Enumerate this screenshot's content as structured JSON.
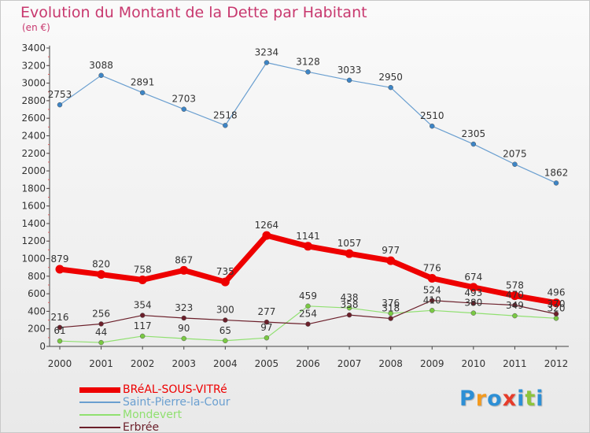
{
  "header": {
    "title": "Evolution du Montant de la Dette par Habitant",
    "unit": "(en €)"
  },
  "logo": {
    "letters": [
      "P",
      "r",
      "o",
      "x",
      "i",
      "t",
      "i"
    ],
    "colors": [
      "#2d8fd5",
      "#f39a1f",
      "#2d8fd5",
      "#e63c2a",
      "#2d8fd5",
      "#8cc43c",
      "#2d8fd5"
    ]
  },
  "chart_data": {
    "type": "line",
    "title": "Evolution du Montant de la Dette par Habitant",
    "ylabel": "(en €)",
    "x": [
      "2000",
      "2001",
      "2002",
      "2003",
      "2004",
      "2005",
      "2006",
      "2007",
      "2008",
      "2009",
      "2010",
      "2011",
      "2012"
    ],
    "ylim": [
      0,
      3400
    ],
    "yticks": [
      0,
      200,
      400,
      600,
      800,
      1000,
      1200,
      1400,
      1600,
      1800,
      2000,
      2200,
      2400,
      2600,
      2800,
      3000,
      3200,
      3400
    ],
    "grid": false,
    "legend_position": "bottom-left",
    "series": [
      {
        "name": "BRéAL-SOUS-VITRé",
        "color": "#ee0000",
        "values": [
          879,
          820,
          758,
          867,
          735,
          1264,
          1141,
          1057,
          977,
          776,
          674,
          578,
          496
        ]
      },
      {
        "name": "Saint-Pierre-la-Cour",
        "color": "#6a9fd0",
        "values": [
          2753,
          3088,
          2891,
          2703,
          2518,
          3234,
          3128,
          3033,
          2950,
          2510,
          2305,
          2075,
          1862
        ]
      },
      {
        "name": "Mondevert",
        "color": "#90e070",
        "values": [
          61,
          44,
          117,
          90,
          65,
          97,
          459,
          438,
          376,
          410,
          380,
          349,
          320
        ]
      },
      {
        "name": "Erbrée",
        "color": "#6b1f2a",
        "values": [
          216,
          256,
          354,
          323,
          300,
          277,
          254,
          358,
          318,
          524,
          493,
          470,
          370
        ]
      }
    ]
  }
}
